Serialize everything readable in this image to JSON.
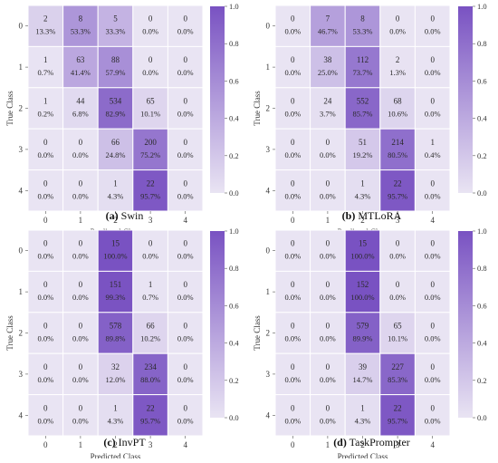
{
  "figure": {
    "panel_prefixes": [
      "(a)",
      "(b)",
      "(c)",
      "(d)"
    ],
    "panel_names": [
      "Swin",
      "MTLoRA",
      "InvPT",
      "TaskPrompter"
    ]
  },
  "chart_data": [
    {
      "type": "heatmap",
      "title": "",
      "caption_label": "(a)",
      "caption_name": "Swin",
      "xlabel": "Predicted Class",
      "ylabel": "True Class",
      "x_ticks": [
        "0",
        "1",
        "2",
        "3",
        "4"
      ],
      "y_ticks": [
        "0",
        "1",
        "2",
        "3",
        "4"
      ],
      "counts": [
        [
          2,
          8,
          5,
          0,
          0
        ],
        [
          1,
          63,
          88,
          0,
          0
        ],
        [
          1,
          44,
          534,
          65,
          0
        ],
        [
          0,
          0,
          66,
          200,
          0
        ],
        [
          0,
          0,
          1,
          22,
          0
        ]
      ],
      "percent_labels": [
        [
          "13.3%",
          "53.3%",
          "33.3%",
          "0.0%",
          "0.0%"
        ],
        [
          "0.7%",
          "41.4%",
          "57.9%",
          "0.0%",
          "0.0%"
        ],
        [
          "0.2%",
          "6.8%",
          "82.9%",
          "10.1%",
          "0.0%"
        ],
        [
          "0.0%",
          "0.0%",
          "24.8%",
          "75.2%",
          "0.0%"
        ],
        [
          "0.0%",
          "0.0%",
          "4.3%",
          "95.7%",
          "0.0%"
        ]
      ],
      "colorbar": {
        "range": [
          0,
          1
        ],
        "ticks": [
          "0.0",
          "0.2",
          "0.4",
          "0.6",
          "0.8",
          "1.0"
        ],
        "low_color": "#e9e4f3",
        "high_color": "#7952c2"
      }
    },
    {
      "type": "heatmap",
      "title": "",
      "caption_label": "(b)",
      "caption_name": "MTLoRA",
      "xlabel": "Predicted Class",
      "ylabel": "True Class",
      "x_ticks": [
        "0",
        "1",
        "2",
        "3",
        "4"
      ],
      "y_ticks": [
        "0",
        "1",
        "2",
        "3",
        "4"
      ],
      "counts": [
        [
          0,
          7,
          8,
          0,
          0
        ],
        [
          0,
          38,
          112,
          2,
          0
        ],
        [
          0,
          24,
          552,
          68,
          0
        ],
        [
          0,
          0,
          51,
          214,
          1
        ],
        [
          0,
          0,
          1,
          22,
          0
        ]
      ],
      "percent_labels": [
        [
          "0.0%",
          "46.7%",
          "53.3%",
          "0.0%",
          "0.0%"
        ],
        [
          "0.0%",
          "25.0%",
          "73.7%",
          "1.3%",
          "0.0%"
        ],
        [
          "0.0%",
          "3.7%",
          "85.7%",
          "10.6%",
          "0.0%"
        ],
        [
          "0.0%",
          "0.0%",
          "19.2%",
          "80.5%",
          "0.4%"
        ],
        [
          "0.0%",
          "0.0%",
          "4.3%",
          "95.7%",
          "0.0%"
        ]
      ],
      "colorbar": {
        "range": [
          0,
          1
        ],
        "ticks": [
          "0.0",
          "0.2",
          "0.4",
          "0.6",
          "0.8",
          "1.0"
        ],
        "low_color": "#e9e4f3",
        "high_color": "#7952c2"
      }
    },
    {
      "type": "heatmap",
      "title": "",
      "caption_label": "(c)",
      "caption_name": "InvPT",
      "xlabel": "Predicted Class",
      "ylabel": "True Class",
      "x_ticks": [
        "0",
        "1",
        "2",
        "3",
        "4"
      ],
      "y_ticks": [
        "0",
        "1",
        "2",
        "3",
        "4"
      ],
      "counts": [
        [
          0,
          0,
          15,
          0,
          0
        ],
        [
          0,
          0,
          151,
          1,
          0
        ],
        [
          0,
          0,
          578,
          66,
          0
        ],
        [
          0,
          0,
          32,
          234,
          0
        ],
        [
          0,
          0,
          1,
          22,
          0
        ]
      ],
      "percent_labels": [
        [
          "0.0%",
          "0.0%",
          "100.0%",
          "0.0%",
          "0.0%"
        ],
        [
          "0.0%",
          "0.0%",
          "99.3%",
          "0.7%",
          "0.0%"
        ],
        [
          "0.0%",
          "0.0%",
          "89.8%",
          "10.2%",
          "0.0%"
        ],
        [
          "0.0%",
          "0.0%",
          "12.0%",
          "88.0%",
          "0.0%"
        ],
        [
          "0.0%",
          "0.0%",
          "4.3%",
          "95.7%",
          "0.0%"
        ]
      ],
      "colorbar": {
        "range": [
          0,
          1
        ],
        "ticks": [
          "0.0",
          "0.2",
          "0.4",
          "0.6",
          "0.8",
          "1.0"
        ],
        "low_color": "#e9e4f3",
        "high_color": "#7952c2"
      }
    },
    {
      "type": "heatmap",
      "title": "",
      "caption_label": "(d)",
      "caption_name": "TaskPrompter",
      "xlabel": "Predicted Class",
      "ylabel": "True Class",
      "x_ticks": [
        "0",
        "1",
        "2",
        "3",
        "4"
      ],
      "y_ticks": [
        "0",
        "1",
        "2",
        "3",
        "4"
      ],
      "counts": [
        [
          0,
          0,
          15,
          0,
          0
        ],
        [
          0,
          0,
          152,
          0,
          0
        ],
        [
          0,
          0,
          579,
          65,
          0
        ],
        [
          0,
          0,
          39,
          227,
          0
        ],
        [
          0,
          0,
          1,
          22,
          0
        ]
      ],
      "percent_labels": [
        [
          "0.0%",
          "0.0%",
          "100.0%",
          "0.0%",
          "0.0%"
        ],
        [
          "0.0%",
          "0.0%",
          "100.0%",
          "0.0%",
          "0.0%"
        ],
        [
          "0.0%",
          "0.0%",
          "89.9%",
          "10.1%",
          "0.0%"
        ],
        [
          "0.0%",
          "0.0%",
          "14.7%",
          "85.3%",
          "0.0%"
        ],
        [
          "0.0%",
          "0.0%",
          "4.3%",
          "95.7%",
          "0.0%"
        ]
      ],
      "colorbar": {
        "range": [
          0,
          1
        ],
        "ticks": [
          "0.0",
          "0.2",
          "0.4",
          "0.6",
          "0.8",
          "1.0"
        ],
        "low_color": "#e9e4f3",
        "high_color": "#7952c2"
      }
    }
  ]
}
